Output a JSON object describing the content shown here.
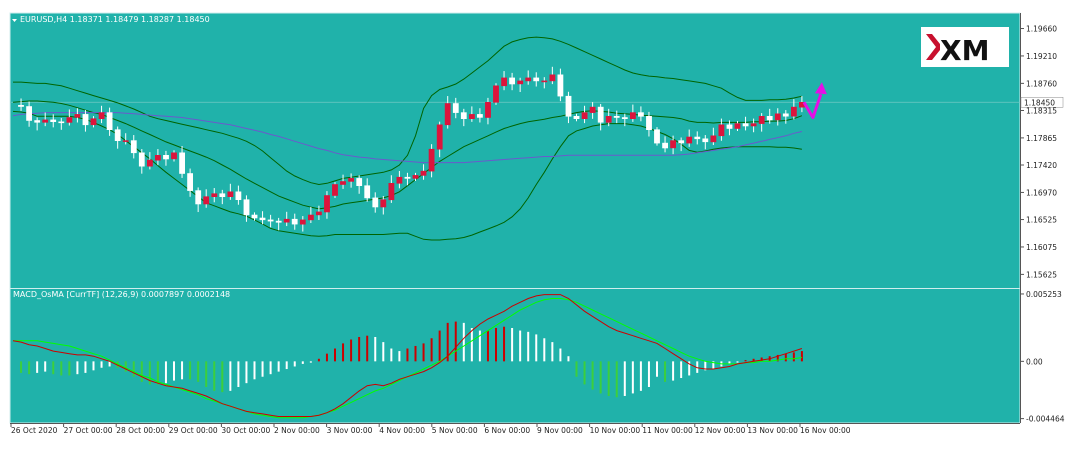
{
  "colors": {
    "background": "#20b2aa",
    "bull_candle": "#dc143c",
    "bear_candle": "#ffffff",
    "bands": "#006400",
    "ma": "#6a5acd",
    "macd_main": "#cc0000",
    "macd_signal": "#00ff00",
    "hist_pos_rising": "#cc0000",
    "hist_pos_falling": "#ffffff",
    "hist_neg_falling": "#3ccf3c",
    "hist_neg_rising": "#ffffff",
    "arrow": "#e60ee6",
    "axis_text": "#222222"
  },
  "logo": {
    "text": "XM"
  },
  "chart_data": [
    {
      "type": "candlestick",
      "title": "EURUSD,H4  1.18371 1.18479 1.18287 1.18450",
      "current_price_label": "1.18450",
      "current_price": 1.1845,
      "ylim": [
        1.155,
        1.198
      ],
      "y_ticks": [
        "1.19660",
        "1.19210",
        "1.18760",
        "1.18315",
        "1.17865",
        "1.17420",
        "1.16970",
        "1.16525",
        "1.16075",
        "1.15625"
      ],
      "y_tick_values": [
        1.1966,
        1.1921,
        1.1876,
        1.18315,
        1.17865,
        1.1742,
        1.1697,
        1.16525,
        1.16075,
        1.15625
      ],
      "close": [
        1.184,
        1.1838,
        1.1815,
        1.1812,
        1.1816,
        1.1813,
        1.1812,
        1.182,
        1.1825,
        1.1808,
        1.1818,
        1.1828,
        1.18,
        1.1782,
        1.1782,
        1.1762,
        1.174,
        1.175,
        1.1758,
        1.1752,
        1.1762,
        1.1728,
        1.17,
        1.1678,
        1.169,
        1.1695,
        1.169,
        1.1698,
        1.1685,
        1.166,
        1.1655,
        1.1652,
        1.165,
        1.1648,
        1.1653,
        1.1645,
        1.1652,
        1.166,
        1.1665,
        1.1692,
        1.171,
        1.1715,
        1.172,
        1.1708,
        1.1688,
        1.1673,
        1.1685,
        1.1712,
        1.1722,
        1.172,
        1.1725,
        1.1732,
        1.1768,
        1.1808,
        1.1843,
        1.1828,
        1.1818,
        1.1825,
        1.182,
        1.1845,
        1.1872,
        1.1885,
        1.1875,
        1.188,
        1.1885,
        1.188,
        1.188,
        1.189,
        1.1855,
        1.1822,
        1.1818,
        1.1828,
        1.1837,
        1.1812,
        1.1822,
        1.182,
        1.1818,
        1.1828,
        1.1822,
        1.18,
        1.1778,
        1.177,
        1.1782,
        1.1778,
        1.1788,
        1.1785,
        1.178,
        1.179,
        1.1808,
        1.1802,
        1.181,
        1.1806,
        1.181,
        1.1822,
        1.1816,
        1.1826,
        1.1822,
        1.1837,
        1.1845
      ],
      "wick_range": 0.0014,
      "upper_band": [
        1.1878,
        1.1878,
        1.1877,
        1.1876,
        1.1876,
        1.1874,
        1.1872,
        1.1868,
        1.1864,
        1.186,
        1.1856,
        1.1852,
        1.1848,
        1.1844,
        1.1839,
        1.1834,
        1.1828,
        1.1822,
        1.1818,
        1.1815,
        1.1812,
        1.1809,
        1.1806,
        1.1803,
        1.18,
        1.1797,
        1.1794,
        1.179,
        1.1786,
        1.1781,
        1.1774,
        1.1765,
        1.1754,
        1.1743,
        1.1732,
        1.1724,
        1.1718,
        1.1713,
        1.171,
        1.1712,
        1.1716,
        1.172,
        1.1722,
        1.1724,
        1.1726,
        1.1728,
        1.173,
        1.1734,
        1.1742,
        1.1758,
        1.179,
        1.1835,
        1.1856,
        1.1866,
        1.187,
        1.1875,
        1.1883,
        1.1893,
        1.1903,
        1.1913,
        1.1925,
        1.1937,
        1.1944,
        1.1948,
        1.1951,
        1.1952,
        1.1951,
        1.1949,
        1.1945,
        1.194,
        1.1934,
        1.1928,
        1.1922,
        1.1916,
        1.191,
        1.1904,
        1.1898,
        1.1893,
        1.189,
        1.1888,
        1.1887,
        1.1885,
        1.1884,
        1.1882,
        1.188,
        1.1878,
        1.1876,
        1.1872,
        1.1868,
        1.186,
        1.1853,
        1.1848,
        1.1848,
        1.1848,
        1.1849,
        1.1849,
        1.185,
        1.1852,
        1.1855
      ],
      "lower_band": [
        1.183,
        1.1829,
        1.1827,
        1.1822,
        1.1822,
        1.1822,
        1.1822,
        1.1822,
        1.182,
        1.1817,
        1.1812,
        1.1806,
        1.18,
        1.1792,
        1.1782,
        1.1772,
        1.1762,
        1.1752,
        1.1741,
        1.173,
        1.172,
        1.171,
        1.17,
        1.169,
        1.168,
        1.1675,
        1.167,
        1.1665,
        1.1662,
        1.1658,
        1.1652,
        1.1645,
        1.1638,
        1.1634,
        1.1632,
        1.163,
        1.1628,
        1.1626,
        1.1625,
        1.1626,
        1.1628,
        1.1628,
        1.1628,
        1.1628,
        1.1628,
        1.1628,
        1.1628,
        1.1629,
        1.163,
        1.163,
        1.1625,
        1.162,
        1.1619,
        1.1619,
        1.162,
        1.1621,
        1.1623,
        1.1627,
        1.1632,
        1.1637,
        1.1642,
        1.1648,
        1.1657,
        1.167,
        1.1688,
        1.171,
        1.173,
        1.1752,
        1.1772,
        1.179,
        1.1798,
        1.1802,
        1.1806,
        1.1808,
        1.181,
        1.181,
        1.181,
        1.1808,
        1.1806,
        1.1802,
        1.1797,
        1.1792,
        1.1785,
        1.1776,
        1.1766,
        1.1763,
        1.1765,
        1.1768,
        1.177,
        1.1771,
        1.1772,
        1.1772,
        1.1772,
        1.1772,
        1.1772,
        1.1771,
        1.1771,
        1.177,
        1.1768
      ],
      "middle_band": [
        1.1845,
        1.1846,
        1.1847,
        1.1847,
        1.1846,
        1.1845,
        1.1843,
        1.184,
        1.1836,
        1.1832,
        1.1828,
        1.1825,
        1.182,
        1.1815,
        1.181,
        1.1804,
        1.1798,
        1.1792,
        1.1786,
        1.178,
        1.1775,
        1.177,
        1.1765,
        1.176,
        1.1755,
        1.1749,
        1.1742,
        1.1735,
        1.1727,
        1.1719,
        1.1712,
        1.1705,
        1.1698,
        1.1691,
        1.1686,
        1.1681,
        1.1676,
        1.1673,
        1.167,
        1.1672,
        1.1674,
        1.1678,
        1.168,
        1.1682,
        1.1684,
        1.1686,
        1.1688,
        1.1692,
        1.1698,
        1.1708,
        1.1718,
        1.1728,
        1.1738,
        1.1748,
        1.1756,
        1.1764,
        1.1772,
        1.1778,
        1.1784,
        1.179,
        1.1796,
        1.1802,
        1.1806,
        1.181,
        1.1813,
        1.1815,
        1.1817,
        1.182,
        1.1822,
        1.1825,
        1.1828,
        1.183,
        1.1831,
        1.183,
        1.1829,
        1.1827,
        1.1826,
        1.1825,
        1.1824,
        1.1823,
        1.1822,
        1.1821,
        1.182,
        1.1818,
        1.1814,
        1.1812,
        1.1812,
        1.1811,
        1.1812,
        1.1812,
        1.1812,
        1.1812,
        1.1813,
        1.1813,
        1.1814,
        1.1814,
        1.1815,
        1.1818,
        1.1823
      ],
      "ma_line": [
        1.1823,
        1.1825,
        1.1826,
        1.1827,
        1.1828,
        1.1828,
        1.1828,
        1.1828,
        1.1828,
        1.1828,
        1.1828,
        1.1828,
        1.1828,
        1.1828,
        1.1827,
        1.1826,
        1.1825,
        1.1824,
        1.1823,
        1.1822,
        1.1821,
        1.182,
        1.1818,
        1.1816,
        1.1814,
        1.1812,
        1.181,
        1.1808,
        1.1805,
        1.1802,
        1.1799,
        1.1796,
        1.1792,
        1.1789,
        1.1785,
        1.1781,
        1.1777,
        1.1773,
        1.1769,
        1.1766,
        1.1762,
        1.1759,
        1.1757,
        1.1755,
        1.1754,
        1.1752,
        1.1751,
        1.175,
        1.1749,
        1.1748,
        1.1747,
        1.1746,
        1.1746,
        1.1746,
        1.1746,
        1.1746,
        1.1746,
        1.1747,
        1.1748,
        1.1749,
        1.175,
        1.1751,
        1.1752,
        1.1753,
        1.1754,
        1.1755,
        1.1756,
        1.1756,
        1.1757,
        1.1758,
        1.1758,
        1.1758,
        1.1758,
        1.1758,
        1.1758,
        1.1758,
        1.1758,
        1.1758,
        1.1758,
        1.1758,
        1.1758,
        1.1758,
        1.1758,
        1.1759,
        1.176,
        1.1762,
        1.1764,
        1.1766,
        1.1768,
        1.177,
        1.1772,
        1.1775,
        1.1778,
        1.1781,
        1.1784,
        1.1787,
        1.179,
        1.1794,
        1.1797
      ],
      "arrow_prediction": {
        "direction": "down-then-up",
        "from": 1.1845,
        "low": 1.182,
        "to": 1.1868
      }
    },
    {
      "type": "macd",
      "title": "MACD_OsMA [CurrTF] (12,26,9) 0.0007897 0.0002148",
      "ylim": [
        -0.00465,
        0.00525
      ],
      "y_ticks": [
        "0.005253",
        "0.00",
        "-0.004464"
      ],
      "y_tick_values": [
        0.005253,
        0.0,
        -0.004464
      ],
      "histogram": [
        0.0,
        -0.0009,
        -0.001,
        -0.0009,
        -0.0008,
        -0.001,
        -0.0011,
        -0.0011,
        -0.001,
        -0.0009,
        -0.0007,
        -0.0005,
        -0.0004,
        -0.0005,
        -0.0008,
        -0.0012,
        -0.0016,
        -0.0018,
        -0.0018,
        -0.0017,
        -0.0015,
        -0.0014,
        -0.0014,
        -0.0016,
        -0.002,
        -0.0023,
        -0.0024,
        -0.0023,
        -0.002,
        -0.0017,
        -0.0014,
        -0.0012,
        -0.001,
        -0.0008,
        -0.0006,
        -0.0004,
        -0.0002,
        -0.0001,
        0.0002,
        0.0006,
        0.001,
        0.0014,
        0.0017,
        0.0019,
        0.002,
        0.0019,
        0.0015,
        0.001,
        0.0008,
        0.001,
        0.0012,
        0.0014,
        0.0018,
        0.0024,
        0.003,
        0.0031,
        0.003,
        0.0026,
        0.0024,
        0.0024,
        0.0026,
        0.0027,
        0.0026,
        0.0024,
        0.0023,
        0.0021,
        0.0018,
        0.0015,
        0.001,
        0.0004,
        -0.0012,
        -0.0018,
        -0.0022,
        -0.0025,
        -0.0027,
        -0.0028,
        -0.0027,
        -0.0025,
        -0.0023,
        -0.002,
        -0.0012,
        -0.0016,
        -0.0015,
        -0.0013,
        -0.0011,
        -0.0009,
        -0.0007,
        -0.0006,
        -0.0004,
        -0.0002,
        -0.0001,
        0.0001,
        0.0002,
        0.0003,
        0.0004,
        0.0005,
        0.0006,
        0.0007,
        0.0008
      ],
      "macd_main": [
        0.0016,
        0.0015,
        0.0013,
        0.0012,
        0.001,
        0.0008,
        0.0007,
        0.0006,
        0.0005,
        0.0005,
        0.0004,
        0.0002,
        0.0,
        -0.0003,
        -0.0006,
        -0.0009,
        -0.0012,
        -0.0015,
        -0.0017,
        -0.0019,
        -0.002,
        -0.0021,
        -0.0023,
        -0.0025,
        -0.0027,
        -0.003,
        -0.0033,
        -0.0035,
        -0.0037,
        -0.0039,
        -0.004,
        -0.0041,
        -0.0042,
        -0.0043,
        -0.0043,
        -0.0043,
        -0.0043,
        -0.0043,
        -0.0042,
        -0.004,
        -0.0037,
        -0.0033,
        -0.0028,
        -0.0023,
        -0.0019,
        -0.0018,
        -0.0019,
        -0.0017,
        -0.0014,
        -0.0012,
        -0.001,
        -0.0008,
        -0.0005,
        -0.0001,
        0.0004,
        0.0011,
        0.0018,
        0.0024,
        0.0029,
        0.0033,
        0.0036,
        0.0039,
        0.0043,
        0.0046,
        0.0049,
        0.0051,
        0.0052,
        0.0052,
        0.0052,
        0.0049,
        0.0044,
        0.0039,
        0.0035,
        0.0031,
        0.0027,
        0.0024,
        0.0022,
        0.002,
        0.0018,
        0.0016,
        0.0014,
        0.001,
        0.0006,
        0.0002,
        -0.0002,
        -0.0005,
        -0.0006,
        -0.0006,
        -0.0005,
        -0.0004,
        -0.0002,
        -0.0001,
        0.0,
        0.0001,
        0.0002,
        0.0004,
        0.0006,
        0.0008,
        0.001
      ],
      "signal": [
        0.0016,
        0.0016,
        0.0016,
        0.0016,
        0.0015,
        0.0014,
        0.0013,
        0.0012,
        0.001,
        0.0008,
        0.0006,
        0.0004,
        0.0001,
        -0.0002,
        -0.0005,
        -0.0008,
        -0.0011,
        -0.0013,
        -0.0016,
        -0.0018,
        -0.002,
        -0.0022,
        -0.0024,
        -0.0026,
        -0.0029,
        -0.0031,
        -0.0033,
        -0.0035,
        -0.0037,
        -0.0039,
        -0.0041,
        -0.0042,
        -0.0043,
        -0.0044,
        -0.0044,
        -0.0044,
        -0.0044,
        -0.0043,
        -0.0042,
        -0.004,
        -0.0038,
        -0.0035,
        -0.0032,
        -0.0029,
        -0.0026,
        -0.0023,
        -0.0021,
        -0.0018,
        -0.0015,
        -0.0012,
        -0.0009,
        -0.0006,
        -0.0003,
        0.0,
        0.0004,
        0.0008,
        0.0012,
        0.0016,
        0.002,
        0.0024,
        0.0028,
        0.0032,
        0.0036,
        0.004,
        0.0043,
        0.0046,
        0.0048,
        0.0049,
        0.0049,
        0.0048,
        0.0046,
        0.0043,
        0.004,
        0.0037,
        0.0034,
        0.0031,
        0.0028,
        0.0025,
        0.0022,
        0.0019,
        0.0016,
        0.0013,
        0.001,
        0.0007,
        0.0004,
        0.0002,
        0.0,
        -0.0001,
        -0.0002,
        -0.0002,
        -0.0002,
        -0.0001,
        -0.0001,
        0.0,
        0.0,
        0.0001,
        0.0002,
        0.0002,
        0.0003
      ]
    }
  ],
  "x_axis": {
    "labels": [
      "26 Oct 2020",
      "27 Oct 00:00",
      "28 Oct 00:00",
      "29 Oct 00:00",
      "30 Oct 00:00",
      "2 Nov 00:00",
      "3 Nov 00:00",
      "4 Nov 00:00",
      "5 Nov 00:00",
      "6 Nov 00:00",
      "9 Nov 00:00",
      "10 Nov 00:00",
      "11 Nov 00:00",
      "12 Nov 00:00",
      "13 Nov 00:00",
      "16 Nov 00:00"
    ]
  }
}
